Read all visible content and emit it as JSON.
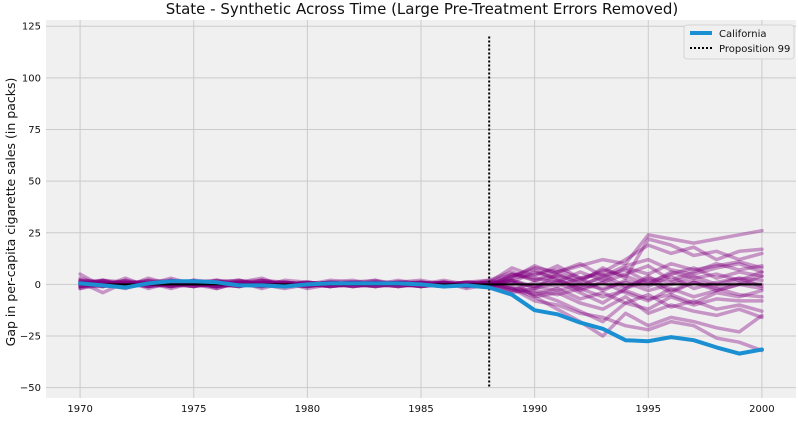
{
  "chart_data": {
    "type": "line",
    "title": "State - Synthetic Across Time (Large Pre-Treatment Errors Removed)",
    "xlabel": "",
    "ylabel": "Gap in per-capita cigarette sales (in packs)",
    "xlim": [
      1968.5,
      2001.5
    ],
    "ylim": [
      -55,
      128
    ],
    "x_ticks": [
      1970,
      1975,
      1980,
      1985,
      1990,
      1995,
      2000
    ],
    "y_ticks": [
      -50,
      -25,
      0,
      25,
      50,
      75,
      100,
      125
    ],
    "grid": true,
    "legend_position": "top-right",
    "years": [
      1970,
      1971,
      1972,
      1973,
      1974,
      1975,
      1976,
      1977,
      1978,
      1979,
      1980,
      1981,
      1982,
      1983,
      1984,
      1985,
      1986,
      1987,
      1988,
      1989,
      1990,
      1991,
      1992,
      1993,
      1994,
      1995,
      1996,
      1997,
      1998,
      1999,
      2000
    ],
    "zero_line": {
      "value": 0,
      "color": "#000000"
    },
    "vline": {
      "x": 1988,
      "ymin": -50,
      "ymax": 120,
      "label": "Proposition 99",
      "color": "#000000"
    },
    "placebo_color": "#800080",
    "highlight": {
      "name": "California",
      "color": "#1a8fd1",
      "values": [
        0.5,
        -0.5,
        -1.5,
        0.5,
        1.5,
        1.5,
        1,
        -0.5,
        -0.5,
        -1,
        0,
        0.5,
        0.5,
        0.5,
        0.5,
        0,
        -1,
        -0.5,
        -1.5,
        -5,
        -12.5,
        -14.5,
        -18.5,
        -21.5,
        -27,
        -27.5,
        -25.5,
        -27,
        -30.5,
        -33.5,
        -31.5
      ]
    },
    "placebo_series": [
      {
        "values": [
          5,
          -1,
          3,
          -1,
          2,
          1,
          0,
          -1,
          2,
          0,
          1,
          0,
          1,
          -1,
          0,
          1,
          -1,
          0,
          2,
          6,
          2,
          4,
          1,
          8,
          3,
          22,
          19,
          14,
          16,
          12,
          15
        ]
      },
      {
        "values": [
          -2,
          2,
          -1,
          3,
          0,
          2,
          -2,
          1,
          0,
          -2,
          0,
          1,
          0,
          2,
          -1,
          0,
          1,
          -2,
          0,
          4,
          8,
          6,
          9,
          12,
          10,
          24,
          22,
          20,
          22,
          24,
          26
        ]
      },
      {
        "values": [
          1,
          -4,
          1,
          0,
          3,
          0,
          2,
          -1,
          1,
          1,
          -2,
          0,
          1,
          0,
          1,
          -1,
          0,
          1,
          -1,
          3,
          5,
          7,
          3,
          6,
          12,
          19,
          15,
          18,
          12,
          16,
          17
        ]
      },
      {
        "values": [
          2,
          1,
          -1,
          1,
          -1,
          2,
          1,
          0,
          -1,
          0,
          1,
          -1,
          0,
          1,
          0,
          1,
          -1,
          0,
          1,
          -3,
          -4,
          -8,
          -13,
          -18,
          -9,
          -12,
          -6,
          -10,
          -7,
          -8,
          -8
        ]
      },
      {
        "values": [
          -1,
          0,
          2,
          -2,
          1,
          0,
          -1,
          2,
          0,
          1,
          0,
          1,
          -1,
          0,
          2,
          0,
          1,
          -1,
          0,
          2,
          -6,
          -12,
          -18,
          -25,
          -14,
          -20,
          -16,
          -18,
          -21,
          -23,
          -15
        ]
      },
      {
        "values": [
          0,
          2,
          0,
          1,
          -2,
          1,
          0,
          1,
          3,
          -1,
          0,
          1,
          2,
          0,
          -1,
          1,
          0,
          1,
          0,
          -2,
          -8,
          -10,
          -14,
          -16,
          -20,
          -22,
          -18,
          -20,
          -26,
          -28,
          -32
        ]
      },
      {
        "values": [
          3,
          0,
          -1,
          0,
          1,
          -1,
          2,
          0,
          1,
          0,
          -1,
          0,
          1,
          1,
          0,
          0,
          1,
          0,
          -1,
          1,
          -1,
          2,
          -2,
          1,
          -4,
          -8,
          -2,
          -6,
          -3,
          0,
          4
        ]
      },
      {
        "values": [
          -1,
          1,
          0,
          2,
          1,
          0,
          -1,
          1,
          -2,
          1,
          0,
          -1,
          0,
          1,
          1,
          -1,
          0,
          1,
          1,
          5,
          3,
          1,
          6,
          2,
          8,
          5,
          10,
          7,
          9,
          11,
          8
        ]
      },
      {
        "values": [
          1,
          0,
          1,
          -1,
          0,
          2,
          -1,
          0,
          1,
          -1,
          1,
          0,
          1,
          0,
          -1,
          1,
          0,
          -1,
          0,
          3,
          9,
          5,
          2,
          7,
          4,
          0,
          6,
          3,
          5,
          2,
          6
        ]
      },
      {
        "values": [
          0,
          -1,
          1,
          1,
          0,
          -1,
          1,
          2,
          0,
          -1,
          0,
          1,
          0,
          -1,
          1,
          0,
          -1,
          0,
          1,
          -2,
          -3,
          -5,
          -2,
          -6,
          -3,
          -7,
          -5,
          -9,
          -4,
          -6,
          -3
        ]
      },
      {
        "values": [
          2,
          1,
          0,
          0,
          -1,
          1,
          0,
          -1,
          1,
          0,
          -1,
          1,
          -1,
          0,
          1,
          2,
          0,
          -1,
          0,
          4,
          7,
          2,
          -1,
          4,
          9,
          12,
          7,
          5,
          8,
          10,
          6
        ]
      },
      {
        "values": [
          -2,
          0,
          1,
          1,
          2,
          0,
          -1,
          0,
          2,
          1,
          0,
          -1,
          0,
          1,
          0,
          -1,
          1,
          0,
          -1,
          -4,
          -2,
          1,
          -4,
          -9,
          -2,
          4,
          -3,
          1,
          -2,
          -5,
          -6
        ]
      },
      {
        "values": [
          1,
          2,
          -1,
          0,
          1,
          -1,
          1,
          0,
          -1,
          2,
          1,
          0,
          -1,
          0,
          1,
          0,
          -1,
          1,
          0,
          2,
          -1,
          -3,
          0,
          -2,
          1,
          -3,
          0,
          2,
          -1,
          1,
          0
        ]
      },
      {
        "values": [
          0,
          1,
          0,
          -1,
          0,
          1,
          2,
          1,
          0,
          -1,
          0,
          2,
          1,
          0,
          -1,
          0,
          2,
          0,
          1,
          8,
          4,
          9,
          3,
          5,
          -1,
          3,
          1,
          4,
          0,
          3,
          2
        ]
      },
      {
        "values": [
          -1,
          -1,
          2,
          0,
          1,
          0,
          -2,
          1,
          0,
          0,
          -1,
          0,
          1,
          2,
          0,
          -1,
          0,
          1,
          2,
          -1,
          -5,
          -2,
          -7,
          -4,
          -9,
          -5,
          -11,
          -8,
          -12,
          -10,
          -13
        ]
      },
      {
        "values": [
          1,
          0,
          -2,
          1,
          0,
          1,
          0,
          -1,
          1,
          0,
          1,
          -1,
          0,
          0,
          1,
          1,
          -1,
          0,
          -1,
          5,
          2,
          6,
          10,
          4,
          7,
          1,
          5,
          8,
          3,
          6,
          4
        ]
      },
      {
        "values": [
          0,
          2,
          1,
          -1,
          2,
          0,
          1,
          0,
          -1,
          1,
          0,
          1,
          0,
          -1,
          0,
          0,
          1,
          -1,
          0,
          -3,
          1,
          -1,
          3,
          -3,
          2,
          -1,
          4,
          -2,
          1,
          3,
          -1
        ]
      },
      {
        "values": [
          2,
          -1,
          0,
          1,
          -1,
          0,
          1,
          2,
          0,
          -1,
          1,
          0,
          -1,
          1,
          0,
          1,
          0,
          0,
          1,
          1,
          6,
          3,
          -3,
          1,
          5,
          9,
          2,
          6,
          10,
          7,
          9
        ]
      },
      {
        "values": [
          -1,
          1,
          1,
          0,
          0,
          -1,
          0,
          1,
          2,
          0,
          -1,
          1,
          0,
          -1,
          1,
          0,
          -1,
          1,
          0,
          -2,
          -6,
          -4,
          -9,
          -12,
          -6,
          -14,
          -10,
          -13,
          -15,
          -12,
          -16
        ]
      },
      {
        "values": [
          1,
          0,
          0,
          2,
          -1,
          1,
          -1,
          0,
          1,
          1,
          0,
          -1,
          1,
          0,
          0,
          -1,
          1,
          0,
          -1,
          2,
          -2,
          5,
          0,
          3,
          -2,
          2,
          -4,
          1,
          -3,
          0,
          -2
        ]
      }
    ]
  }
}
